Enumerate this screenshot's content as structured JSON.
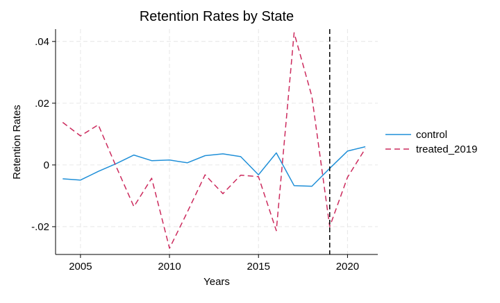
{
  "chart_data": {
    "type": "line",
    "title": "Retention Rates by State",
    "xlabel": "Years",
    "ylabel": "Retention Rates",
    "xlim": [
      2003.6,
      2021.7
    ],
    "ylim": [
      -0.029,
      0.044
    ],
    "x_ticks": [
      2005,
      2010,
      2015,
      2020
    ],
    "x_tick_labels": [
      "2005",
      "2010",
      "2015",
      "2020"
    ],
    "y_ticks": [
      0.04,
      0.02,
      0,
      -0.02
    ],
    "y_tick_labels": [
      ".04",
      ".02",
      "0",
      "-.02"
    ],
    "grid": true,
    "legend_position": "right",
    "vline": {
      "x": 2019,
      "style": "dashed",
      "color": "#000000"
    },
    "x": [
      2004,
      2005,
      2006,
      2007,
      2008,
      2009,
      2010,
      2011,
      2012,
      2013,
      2014,
      2015,
      2016,
      2017,
      2018,
      2019,
      2020,
      2021
    ],
    "series": [
      {
        "name": "control",
        "color": "#1f8fd8",
        "style": "solid",
        "values": [
          -0.0045,
          -0.0049,
          -0.0021,
          0.0004,
          0.0032,
          0.0014,
          0.0016,
          0.0007,
          0.003,
          0.0036,
          0.0027,
          -0.0032,
          0.0039,
          -0.0067,
          -0.0069,
          -0.0011,
          0.0045,
          0.0059
        ]
      },
      {
        "name": "treated_2019",
        "color": "#cc2a5d",
        "style": "dashed",
        "values": [
          0.0138,
          0.0094,
          0.013,
          -0.0005,
          -0.0135,
          -0.0043,
          -0.027,
          -0.0153,
          -0.0032,
          -0.0093,
          -0.0033,
          -0.0038,
          -0.0213,
          0.0428,
          0.0222,
          -0.02,
          -0.004,
          0.0053
        ]
      }
    ]
  }
}
